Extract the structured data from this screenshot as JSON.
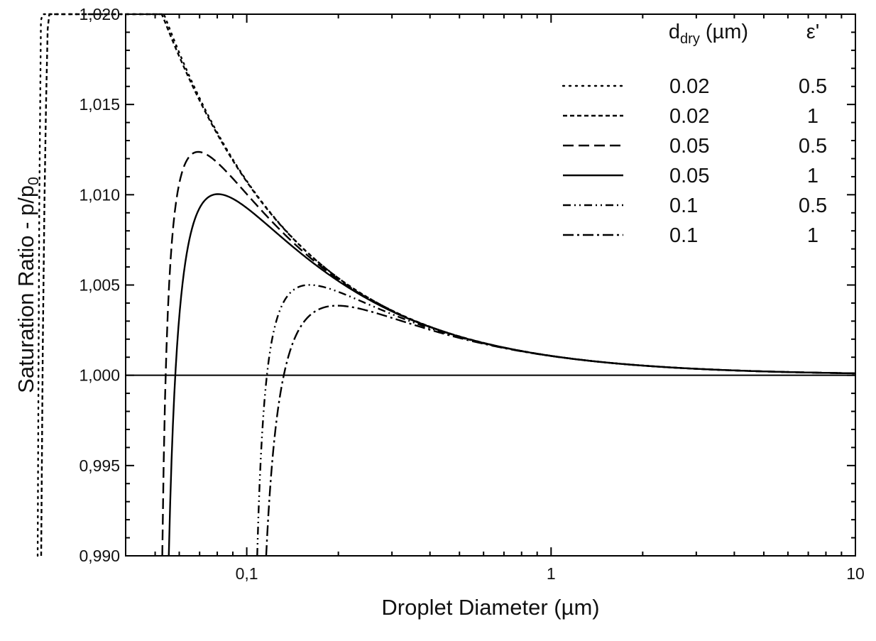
{
  "chart_data": {
    "type": "line",
    "xlabel": "Droplet Diameter (µm)",
    "ylabel_main": "Saturation Ratio - p/p",
    "ylabel_sub": "0",
    "xscale": "log",
    "xlim": [
      0.04,
      10
    ],
    "ylim": [
      0.99,
      1.02
    ],
    "x_ticks": [
      {
        "value": 0.1,
        "label": "0,1"
      },
      {
        "value": 1,
        "label": "1"
      },
      {
        "value": 10,
        "label": "10"
      }
    ],
    "y_ticks": [
      {
        "value": 0.99,
        "label": "0,990"
      },
      {
        "value": 0.995,
        "label": "0,995"
      },
      {
        "value": 1.0,
        "label": "1,000"
      },
      {
        "value": 1.005,
        "label": "1,005"
      },
      {
        "value": 1.01,
        "label": "1,010"
      },
      {
        "value": 1.015,
        "label": "1,015"
      },
      {
        "value": 1.02,
        "label": "1,020"
      }
    ],
    "reference_line": {
      "y": 1.0
    },
    "legend": {
      "position": "top-right",
      "col1_header_main": "d",
      "col1_header_sub": "dry",
      "col1_header_unit": " (µm)",
      "col2_header": "ε'"
    },
    "series": [
      {
        "d_dry": "0.02",
        "epsilon": "0.5",
        "style": "dotted",
        "d_um": 0.02,
        "eps_val": 0.5
      },
      {
        "d_dry": "0.02",
        "epsilon": "1",
        "style": "short-dash",
        "d_um": 0.02,
        "eps_val": 1
      },
      {
        "d_dry": "0.05",
        "epsilon": "0.5",
        "style": "dash",
        "d_um": 0.05,
        "eps_val": 0.5
      },
      {
        "d_dry": "0.05",
        "epsilon": "1",
        "style": "solid",
        "d_um": 0.05,
        "eps_val": 1
      },
      {
        "d_dry": "0.1",
        "epsilon": "0.5",
        "style": "dash-dot-dot",
        "d_um": 0.1,
        "eps_val": 0.5
      },
      {
        "d_dry": "0.1",
        "epsilon": "1",
        "style": "dash-dot",
        "d_um": 0.1,
        "eps_val": 1
      }
    ],
    "grid": false
  }
}
